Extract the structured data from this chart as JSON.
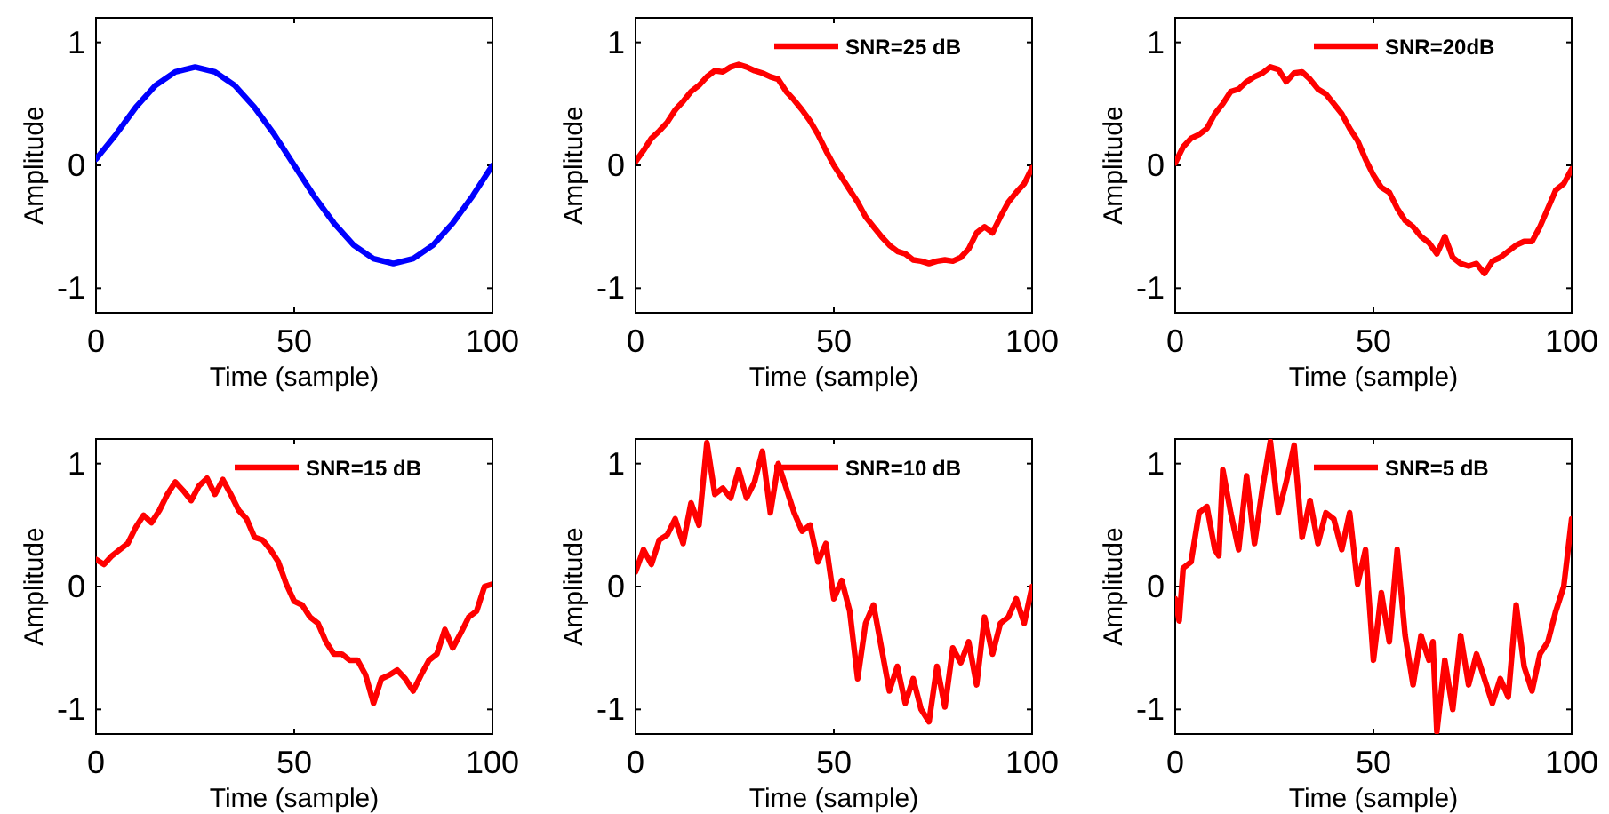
{
  "chart_data": [
    {
      "type": "line",
      "xlabel": "Time (sample)",
      "ylabel": "Amplitude",
      "xlim": [
        0,
        100
      ],
      "ylim": [
        -1.2,
        1.2
      ],
      "xticks": [
        0,
        50,
        100
      ],
      "yticks": [
        -1,
        0,
        1
      ],
      "legend": false,
      "x": [
        0,
        5,
        10,
        15,
        20,
        25,
        30,
        35,
        40,
        45,
        50,
        55,
        60,
        65,
        70,
        75,
        80,
        85,
        90,
        95,
        100
      ],
      "series": [
        {
          "color": "#0000ff",
          "values": [
            0.05,
            0.25,
            0.47,
            0.65,
            0.76,
            0.8,
            0.76,
            0.65,
            0.47,
            0.25,
            0,
            -0.25,
            -0.47,
            -0.65,
            -0.76,
            -0.8,
            -0.76,
            -0.65,
            -0.47,
            -0.25,
            0
          ]
        }
      ]
    },
    {
      "type": "line",
      "xlabel": "Time (sample)",
      "ylabel": "Amplitude",
      "xlim": [
        0,
        100
      ],
      "ylim": [
        -1.2,
        1.2
      ],
      "xticks": [
        0,
        50,
        100
      ],
      "yticks": [
        -1,
        0,
        1
      ],
      "legend": "top right",
      "x": [
        0,
        2,
        4,
        6,
        8,
        10,
        12,
        14,
        16,
        18,
        20,
        22,
        24,
        26,
        28,
        30,
        32,
        34,
        36,
        38,
        40,
        42,
        44,
        46,
        48,
        50,
        52,
        54,
        56,
        58,
        60,
        62,
        64,
        66,
        68,
        70,
        72,
        74,
        76,
        78,
        80,
        82,
        84,
        86,
        88,
        90,
        92,
        94,
        96,
        98,
        100
      ],
      "series": [
        {
          "name": "SNR=25 dB",
          "color": "#ff0000",
          "values": [
            0.03,
            0.12,
            0.22,
            0.28,
            0.35,
            0.45,
            0.52,
            0.6,
            0.65,
            0.72,
            0.77,
            0.76,
            0.8,
            0.82,
            0.8,
            0.77,
            0.75,
            0.72,
            0.7,
            0.6,
            0.53,
            0.45,
            0.36,
            0.25,
            0.12,
            0,
            -0.1,
            -0.2,
            -0.3,
            -0.42,
            -0.5,
            -0.58,
            -0.65,
            -0.7,
            -0.72,
            -0.77,
            -0.78,
            -0.8,
            -0.78,
            -0.77,
            -0.78,
            -0.75,
            -0.68,
            -0.55,
            -0.5,
            -0.55,
            -0.42,
            -0.3,
            -0.22,
            -0.15,
            -0.02
          ]
        }
      ]
    },
    {
      "type": "line",
      "xlabel": "Time (sample)",
      "ylabel": "Amplitude",
      "xlim": [
        0,
        100
      ],
      "ylim": [
        -1.2,
        1.2
      ],
      "xticks": [
        0,
        50,
        100
      ],
      "yticks": [
        -1,
        0,
        1
      ],
      "legend": "top right",
      "x": [
        0,
        2,
        4,
        6,
        8,
        10,
        12,
        14,
        16,
        18,
        20,
        22,
        24,
        26,
        28,
        30,
        32,
        34,
        36,
        38,
        40,
        42,
        44,
        46,
        48,
        50,
        52,
        54,
        56,
        58,
        60,
        62,
        64,
        66,
        68,
        70,
        72,
        74,
        76,
        78,
        80,
        82,
        84,
        86,
        88,
        90,
        92,
        94,
        96,
        98,
        100
      ],
      "series": [
        {
          "name": "SNR=20dB",
          "color": "#ff0000",
          "values": [
            0.02,
            0.15,
            0.22,
            0.25,
            0.3,
            0.42,
            0.5,
            0.6,
            0.62,
            0.68,
            0.72,
            0.75,
            0.8,
            0.78,
            0.68,
            0.75,
            0.76,
            0.7,
            0.62,
            0.58,
            0.5,
            0.42,
            0.3,
            0.2,
            0.05,
            -0.08,
            -0.18,
            -0.22,
            -0.35,
            -0.45,
            -0.5,
            -0.58,
            -0.63,
            -0.72,
            -0.58,
            -0.75,
            -0.8,
            -0.82,
            -0.8,
            -0.88,
            -0.78,
            -0.75,
            -0.7,
            -0.65,
            -0.62,
            -0.62,
            -0.5,
            -0.35,
            -0.2,
            -0.15,
            -0.03
          ]
        }
      ]
    },
    {
      "type": "line",
      "xlabel": "Time (sample)",
      "ylabel": "Amplitude",
      "xlim": [
        0,
        100
      ],
      "ylim": [
        -1.2,
        1.2
      ],
      "xticks": [
        0,
        50,
        100
      ],
      "yticks": [
        -1,
        0,
        1
      ],
      "legend": "top right",
      "x": [
        0,
        2,
        4,
        6,
        8,
        10,
        12,
        14,
        16,
        18,
        20,
        22,
        24,
        26,
        28,
        30,
        32,
        34,
        36,
        38,
        40,
        42,
        44,
        46,
        48,
        50,
        52,
        54,
        56,
        58,
        60,
        62,
        64,
        66,
        68,
        70,
        72,
        74,
        76,
        78,
        80,
        82,
        84,
        86,
        88,
        90,
        92,
        94,
        96,
        98,
        100
      ],
      "series": [
        {
          "name": "SNR=15 dB",
          "color": "#ff0000",
          "values": [
            0.22,
            0.18,
            0.25,
            0.3,
            0.35,
            0.48,
            0.58,
            0.52,
            0.62,
            0.75,
            0.85,
            0.78,
            0.7,
            0.82,
            0.88,
            0.75,
            0.87,
            0.75,
            0.62,
            0.55,
            0.4,
            0.38,
            0.3,
            0.2,
            0.02,
            -0.12,
            -0.15,
            -0.25,
            -0.3,
            -0.45,
            -0.55,
            -0.55,
            -0.6,
            -0.6,
            -0.72,
            -0.95,
            -0.75,
            -0.72,
            -0.68,
            -0.75,
            -0.85,
            -0.72,
            -0.6,
            -0.55,
            -0.35,
            -0.5,
            -0.38,
            -0.25,
            -0.2,
            0,
            0.02
          ]
        }
      ]
    },
    {
      "type": "line",
      "xlabel": "Time (sample)",
      "ylabel": "Amplitude",
      "xlim": [
        0,
        100
      ],
      "ylim": [
        -1.2,
        1.2
      ],
      "xticks": [
        0,
        50,
        100
      ],
      "yticks": [
        -1,
        0,
        1
      ],
      "legend": "top right",
      "x": [
        0,
        2,
        4,
        6,
        8,
        10,
        12,
        14,
        16,
        18,
        20,
        22,
        24,
        26,
        28,
        30,
        32,
        34,
        36,
        38,
        40,
        42,
        44,
        46,
        48,
        50,
        52,
        54,
        56,
        58,
        60,
        62,
        64,
        66,
        68,
        70,
        72,
        74,
        76,
        78,
        80,
        82,
        84,
        86,
        88,
        90,
        92,
        94,
        96,
        98,
        100
      ],
      "series": [
        {
          "name": "SNR=10 dB",
          "color": "#ff0000",
          "values": [
            0.12,
            0.3,
            0.18,
            0.38,
            0.42,
            0.55,
            0.35,
            0.68,
            0.5,
            1.17,
            0.75,
            0.8,
            0.72,
            0.95,
            0.72,
            0.85,
            1.1,
            0.6,
            1,
            0.8,
            0.6,
            0.45,
            0.5,
            0.2,
            0.35,
            -0.1,
            0.05,
            -0.2,
            -0.75,
            -0.3,
            -0.15,
            -0.5,
            -0.85,
            -0.65,
            -0.95,
            -0.75,
            -1,
            -1.1,
            -0.65,
            -0.98,
            -0.5,
            -0.62,
            -0.45,
            -0.8,
            -0.25,
            -0.55,
            -0.3,
            -0.25,
            -0.1,
            -0.3,
            0
          ]
        }
      ]
    },
    {
      "type": "line",
      "xlabel": "Time (sample)",
      "ylabel": "Amplitude",
      "xlim": [
        0,
        100
      ],
      "ylim": [
        -1.2,
        1.2
      ],
      "xticks": [
        0,
        50,
        100
      ],
      "yticks": [
        -1,
        0,
        1
      ],
      "legend": "top right",
      "x": [
        0,
        1,
        2,
        4,
        6,
        8,
        10,
        11,
        12,
        14,
        16,
        18,
        20,
        22,
        24,
        26,
        28,
        30,
        32,
        34,
        36,
        38,
        40,
        42,
        44,
        46,
        48,
        50,
        52,
        54,
        56,
        58,
        60,
        62,
        64,
        65,
        66,
        68,
        70,
        72,
        74,
        76,
        78,
        80,
        82,
        84,
        86,
        88,
        90,
        92,
        94,
        96,
        98,
        100
      ],
      "series": [
        {
          "name": "SNR=5 dB",
          "color": "#ff0000",
          "values": [
            -0.1,
            -0.28,
            0.15,
            0.2,
            0.6,
            0.65,
            0.3,
            0.25,
            0.95,
            0.6,
            0.3,
            0.9,
            0.35,
            0.8,
            1.18,
            0.6,
            0.85,
            1.15,
            0.4,
            0.7,
            0.35,
            0.6,
            0.55,
            0.3,
            0.6,
            0.02,
            0.3,
            -0.6,
            -0.05,
            -0.45,
            0.3,
            -0.4,
            -0.8,
            -0.4,
            -0.6,
            -0.45,
            -1.18,
            -0.6,
            -1,
            -0.4,
            -0.8,
            -0.55,
            -0.75,
            -0.95,
            -0.75,
            -0.9,
            -0.15,
            -0.65,
            -0.85,
            -0.55,
            -0.45,
            -0.2,
            0,
            0.55
          ]
        }
      ]
    }
  ]
}
